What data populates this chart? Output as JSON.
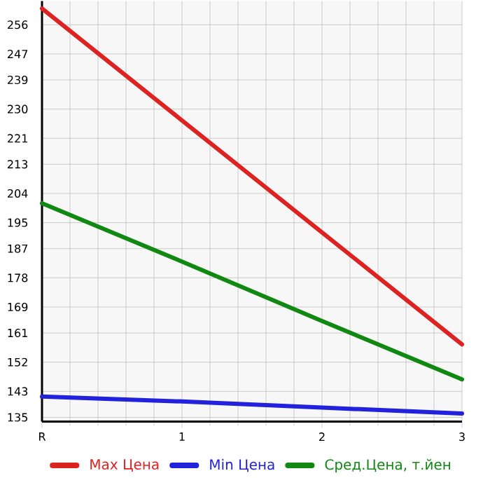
{
  "chart_data": {
    "type": "line",
    "categories": [
      "R",
      "1",
      "2",
      "3"
    ],
    "series": [
      {
        "name": "Max Цена",
        "color": "#dd2222",
        "values": [
          261,
          226.5,
          192,
          157.5
        ]
      },
      {
        "name": "Min Цена",
        "color": "#2222dd",
        "values": [
          141.4,
          139.9,
          138,
          136.2
        ]
      },
      {
        "name": "Сред.Цена, т.йен",
        "color": "#118811",
        "values": [
          201,
          183,
          164.7,
          146.7
        ]
      }
    ],
    "ylim": [
      133.7,
      263.3
    ],
    "yticks": [
      135,
      143,
      152,
      161,
      169,
      178,
      187,
      195,
      204,
      213,
      221,
      230,
      239,
      247,
      256
    ],
    "grid": true,
    "legend": "bottom",
    "marker": "none",
    "line_style": "solid"
  }
}
